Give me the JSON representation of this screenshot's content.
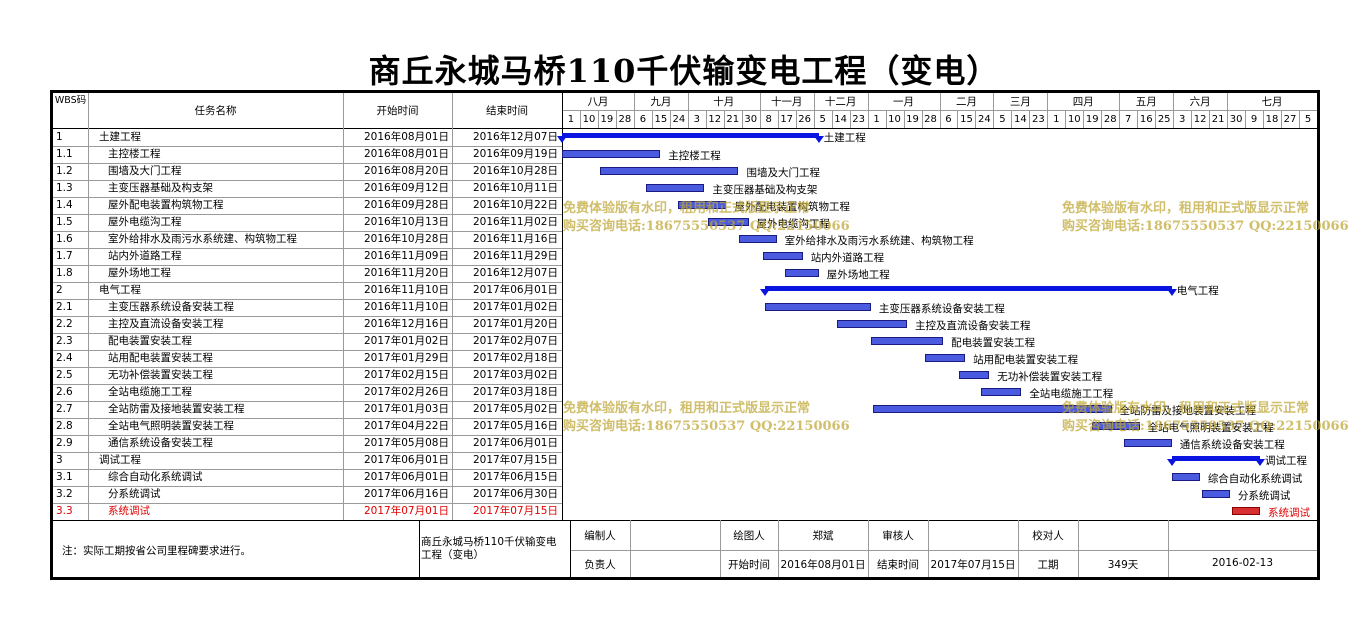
{
  "title": "商丘永城马桥110千伏输变电工程（变电）",
  "header": {
    "wbs": "WBS码",
    "name": "任务名称",
    "start": "开始时间",
    "end": "结束时间"
  },
  "months": [
    "八月",
    "九月",
    "十月",
    "十一月",
    "十二月",
    "一月",
    "二月",
    "三月",
    "四月",
    "五月",
    "六月",
    "七月"
  ],
  "ticks": [
    "1",
    "10",
    "19",
    "28",
    "6",
    "15",
    "24",
    "3",
    "12",
    "21",
    "30",
    "8",
    "17",
    "26",
    "5",
    "14",
    "23",
    "1",
    "10",
    "19",
    "28",
    "6",
    "15",
    "24",
    "5",
    "14",
    "23",
    "1",
    "10",
    "19",
    "28",
    "7",
    "16",
    "25",
    "3",
    "12",
    "21",
    "30",
    "9",
    "18",
    "27",
    "5"
  ],
  "tasks": [
    {
      "wbs": "1",
      "name": "土建工程",
      "start": "2016年08月01日",
      "end": "2016年12月07日",
      "level": 0,
      "summary": true
    },
    {
      "wbs": "1.1",
      "name": "主控楼工程",
      "start": "2016年08月01日",
      "end": "2016年09月19日",
      "level": 1
    },
    {
      "wbs": "1.2",
      "name": "围墙及大门工程",
      "start": "2016年08月20日",
      "end": "2016年10月28日",
      "level": 1
    },
    {
      "wbs": "1.3",
      "name": "主变压器基础及构支架",
      "start": "2016年09月12日",
      "end": "2016年10月11日",
      "level": 1
    },
    {
      "wbs": "1.4",
      "name": "屋外配电装置构筑物工程",
      "start": "2016年09月28日",
      "end": "2016年10月22日",
      "level": 1
    },
    {
      "wbs": "1.5",
      "name": "屋外电缆沟工程",
      "start": "2016年10月13日",
      "end": "2016年11月02日",
      "level": 1
    },
    {
      "wbs": "1.6",
      "name": "室外给排水及雨污水系统建、构筑物工程",
      "start": "2016年10月28日",
      "end": "2016年11月16日",
      "level": 1
    },
    {
      "wbs": "1.7",
      "name": "站内外道路工程",
      "start": "2016年11月09日",
      "end": "2016年11月29日",
      "level": 1
    },
    {
      "wbs": "1.8",
      "name": "屋外场地工程",
      "start": "2016年11月20日",
      "end": "2016年12月07日",
      "level": 1
    },
    {
      "wbs": "2",
      "name": "电气工程",
      "start": "2016年11月10日",
      "end": "2017年06月01日",
      "level": 0,
      "summary": true
    },
    {
      "wbs": "2.1",
      "name": "主变压器系统设备安装工程",
      "start": "2016年11月10日",
      "end": "2017年01月02日",
      "level": 1
    },
    {
      "wbs": "2.2",
      "name": "主控及直流设备安装工程",
      "start": "2016年12月16日",
      "end": "2017年01月20日",
      "level": 1
    },
    {
      "wbs": "2.3",
      "name": "配电装置安装工程",
      "start": "2017年01月02日",
      "end": "2017年02月07日",
      "level": 1
    },
    {
      "wbs": "2.4",
      "name": "站用配电装置安装工程",
      "start": "2017年01月29日",
      "end": "2017年02月18日",
      "level": 1
    },
    {
      "wbs": "2.5",
      "name": "无功补偿装置安装工程",
      "start": "2017年02月15日",
      "end": "2017年03月02日",
      "level": 1
    },
    {
      "wbs": "2.6",
      "name": "全站电缆施工工程",
      "start": "2017年02月26日",
      "end": "2017年03月18日",
      "level": 1
    },
    {
      "wbs": "2.7",
      "name": "全站防雷及接地装置安装工程",
      "start": "2017年01月03日",
      "end": "2017年05月02日",
      "level": 1
    },
    {
      "wbs": "2.8",
      "name": "全站电气照明装置安装工程",
      "start": "2017年04月22日",
      "end": "2017年05月16日",
      "level": 1
    },
    {
      "wbs": "2.9",
      "name": "通信系统设备安装工程",
      "start": "2017年05月08日",
      "end": "2017年06月01日",
      "level": 1
    },
    {
      "wbs": "3",
      "name": "调试工程",
      "start": "2017年06月01日",
      "end": "2017年07月15日",
      "level": 0,
      "summary": true
    },
    {
      "wbs": "3.1",
      "name": "综合自动化系统调试",
      "start": "2017年06月01日",
      "end": "2017年06月15日",
      "level": 1
    },
    {
      "wbs": "3.2",
      "name": "分系统调试",
      "start": "2017年06月16日",
      "end": "2017年06月30日",
      "level": 1
    },
    {
      "wbs": "3.3",
      "name": "系统调试",
      "start": "2017年07月01日",
      "end": "2017年07月15日",
      "level": 1,
      "critical": true
    }
  ],
  "footer": {
    "note": "注：实际工期按省公司里程碑要求进行。",
    "project": "商丘永城马桥110千伏输变电工程（变电）",
    "editor_label": "编制人",
    "drawer_label": "绘图人",
    "drawer_value": "郑斌",
    "reviewer_label": "审核人",
    "checker_label": "校对人",
    "owner_label": "负责人",
    "start_label": "开始时间",
    "start_value": "2016年08月01日",
    "end_label": "结束时间",
    "end_value": "2017年07月15日",
    "duration_label": "工期",
    "duration_value": "349天",
    "date_value": "2016-02-13"
  },
  "watermark": {
    "line1": "免费体验版有水印，租用和正式版显示正常",
    "line2": "购买咨询电话:18675550537 QQ:22150066"
  }
}
